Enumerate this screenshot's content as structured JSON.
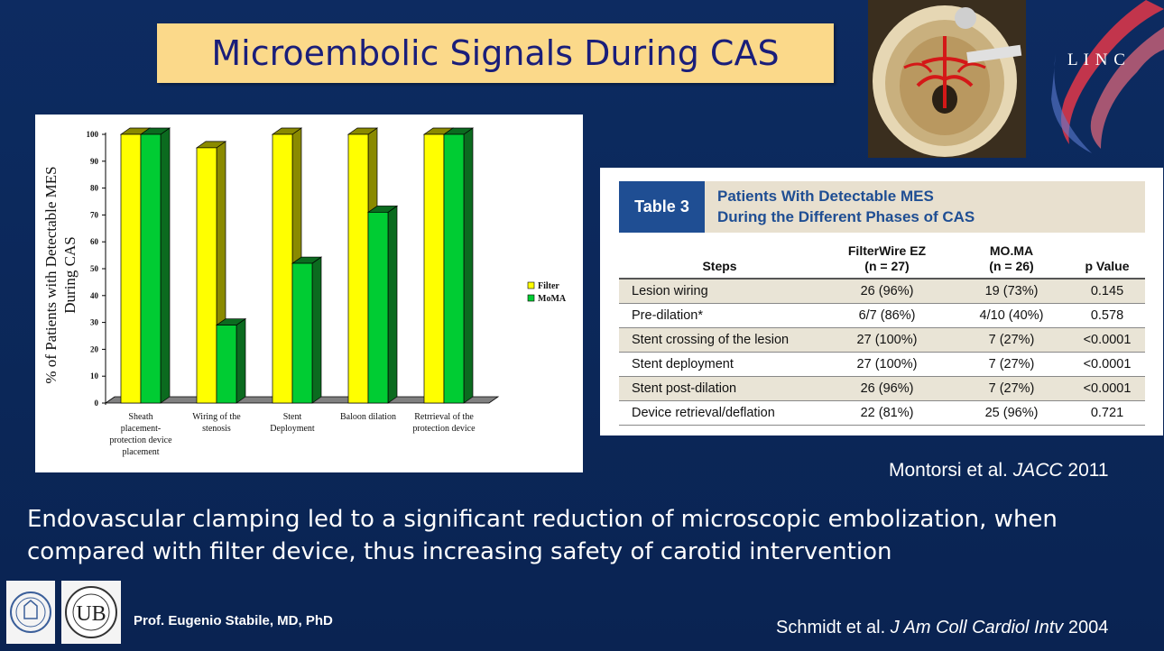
{
  "title": "Microembolic Signals During CAS",
  "logo_text": "L I N C",
  "chart_data": {
    "type": "bar",
    "ylabel_line1": "% of Patients with Detectable MES",
    "ylabel_line2": "During CAS",
    "ylim": [
      0,
      100
    ],
    "yticks": [
      0,
      10,
      20,
      30,
      40,
      50,
      60,
      70,
      80,
      90,
      100
    ],
    "categories": [
      [
        "Sheath",
        "placement-",
        "protection device",
        "placement"
      ],
      [
        "Wiring of the",
        "stenosis"
      ],
      [
        "Stent",
        "Deployment"
      ],
      [
        "Baloon dilation"
      ],
      [
        "Retrrieval of the",
        "protection device"
      ]
    ],
    "series": [
      {
        "name": "Filter",
        "color": "#ffff00",
        "side": "#8a8a00",
        "values": [
          100,
          95,
          100,
          100,
          100
        ]
      },
      {
        "name": "MoMA",
        "color": "#00cc33",
        "side": "#0b6b1f",
        "values": [
          100,
          29,
          52,
          71,
          100
        ]
      }
    ],
    "legend_position": "right"
  },
  "table": {
    "tag": "Table 3",
    "caption_line1": "Patients With Detectable MES",
    "caption_line2": "During the Different Phases of CAS",
    "headers": {
      "steps": "Steps",
      "filter_l1": "FilterWire EZ",
      "filter_l2": "(n = 27)",
      "moma_l1": "MO.MA",
      "moma_l2": "(n = 26)",
      "p": "p Value"
    },
    "rows": [
      {
        "step": "Lesion wiring",
        "filter": "26 (96%)",
        "moma": "19 (73%)",
        "p": "0.145"
      },
      {
        "step": "Pre-dilation*",
        "filter": "6/7 (86%)",
        "moma": "4/10 (40%)",
        "p": "0.578"
      },
      {
        "step": "Stent crossing of the lesion",
        "filter": "27 (100%)",
        "moma": "7 (27%)",
        "p": "<0.0001"
      },
      {
        "step": "Stent deployment",
        "filter": "27 (100%)",
        "moma": "7 (27%)",
        "p": "<0.0001"
      },
      {
        "step": "Stent post-dilation",
        "filter": "26 (96%)",
        "moma": "7 (27%)",
        "p": "<0.0001"
      },
      {
        "step": "Device retrieval/deflation",
        "filter": "22 (81%)",
        "moma": "25 (96%)",
        "p": "0.721"
      }
    ]
  },
  "source1": {
    "authors": "Montorsi et al. ",
    "journal": "JACC",
    "year": " 2011"
  },
  "conclusion": "Endovascular clamping led to a significant reduction of microscopic embolization, when compared with filter device, thus increasing safety of carotid intervention",
  "author": "Prof. Eugenio Stabile, MD, PhD",
  "source2": {
    "authors": "Schmidt et al. ",
    "journal": "J Am Coll Cardiol Intv",
    "year": " 2004"
  }
}
